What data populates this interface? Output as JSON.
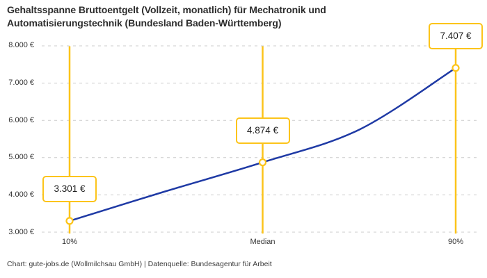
{
  "title": "Gehaltsspanne Bruttoentgelt (Vollzeit, monatlich) für Mechatronik und Automatisierungstechnik (Bundesland Baden-Württemberg)",
  "footer": "Chart: gute-jobs.de (Wollmilchsau GmbH) | Datenquelle: Bundesagentur für Arbeit",
  "colors": {
    "background": "#ffffff",
    "accent_yellow": "#fcc41a",
    "line_blue": "#1f3aa5",
    "gridline": "#cccccc",
    "title_text": "#2d2d2d",
    "axis_text": "#333333",
    "footer_text": "#3d3d3d"
  },
  "chart_data": {
    "type": "line",
    "title": "Gehaltsspanne Bruttoentgelt (Vollzeit, monatlich) für Mechatronik und Automatisierungstechnik (Bundesland Baden-Württemberg)",
    "categories": [
      "10%",
      "Median",
      "90%"
    ],
    "values": [
      3301,
      4874,
      7407
    ],
    "point_labels": [
      "3.301 €",
      "4.874 €",
      "7.407 €"
    ],
    "y_ticks": [
      "8.000 €",
      "7.000 €",
      "6.000 €",
      "5.000 €",
      "4.000 €",
      "3.000 €"
    ],
    "ylim": [
      3000,
      8000
    ],
    "xlabel": "",
    "ylabel": "",
    "grid": "horizontal-dashed",
    "legend": "none",
    "curve_shape_estimates": [
      {
        "x_frac": 0.25,
        "value": 4100
      },
      {
        "x_frac": 0.75,
        "value": 5750
      }
    ]
  }
}
